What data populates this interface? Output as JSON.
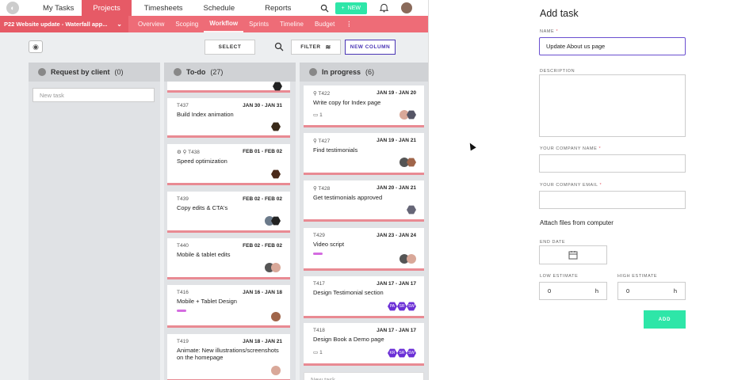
{
  "topnav": {
    "items": [
      "My Tasks",
      "Projects",
      "Timesheets",
      "Schedule",
      "Reports"
    ],
    "new_label": "NEW"
  },
  "projectbar": {
    "project_label": "P22  Website update - Waterfall app...",
    "tabs": [
      "Overview",
      "Scoping",
      "Workflow",
      "Sprints",
      "Timeline",
      "Budget"
    ],
    "more": "⋮"
  },
  "toolbar": {
    "select_label": "SELECT",
    "filter_label": "FILTER",
    "new_column_label": "NEW COLUMN"
  },
  "columns": [
    {
      "name": "Request by client",
      "count": "(0)",
      "new_task": "New task"
    },
    {
      "name": "To-do",
      "count": "(27)"
    },
    {
      "name": "In progress",
      "count": "(6)",
      "new_task": "New task"
    }
  ],
  "todo_cards": [
    {
      "id": "T437",
      "dates": "JAN 30 - JAN 31",
      "title": "Build Index animation"
    },
    {
      "id": "T438",
      "dates": "FEB 01 - FEB 02",
      "title": "Speed optimization"
    },
    {
      "id": "T439",
      "dates": "FEB 02 - FEB 02",
      "title": "Copy edits & CTA's"
    },
    {
      "id": "T440",
      "dates": "FEB 02 - FEB 02",
      "title": "Mobile & tablet edits"
    },
    {
      "id": "T416",
      "dates": "JAN 16 - JAN 18",
      "title": "Mobile + Tablet Design"
    },
    {
      "id": "T419",
      "dates": "JAN 18 - JAN 21",
      "title": "Animate: New illustrations/screenshots on the homepage"
    }
  ],
  "progress_cards": [
    {
      "id": "T422",
      "dates": "JAN 19 - JAN 20",
      "title": "Write copy for Index page",
      "comments": "1"
    },
    {
      "id": "T427",
      "dates": "JAN 19 - JAN 21",
      "title": "Find testimonials"
    },
    {
      "id": "T428",
      "dates": "JAN 20 - JAN 21",
      "title": "Get testimonials approved"
    },
    {
      "id": "T429",
      "dates": "JAN 23 - JAN 24",
      "title": "Video script"
    },
    {
      "id": "T417",
      "dates": "JAN 17 - JAN 17",
      "title": "Design Testimonial section",
      "avatars": [
        "PA",
        "SR",
        "SW"
      ]
    },
    {
      "id": "T418",
      "dates": "JAN 17 - JAN 17",
      "title": "Design Book a Demo page",
      "comments": "1",
      "avatars": [
        "KR",
        "SR",
        "SW"
      ]
    }
  ],
  "panel": {
    "title": "Add task",
    "name_label": "NAME",
    "name_value": "Update About us page",
    "description_label": "DESCRIPTION",
    "company_name_label": "YOUR COMPANY NAME",
    "company_email_label": "YOUR COMPANY EMAIL",
    "required_mark": "*",
    "attach_label": "Attach files from computer",
    "end_date_label": "END DATE",
    "low_estimate_label": "LOW ESTIMATE",
    "high_estimate_label": "HIGH ESTIMATE",
    "low_value": "0",
    "high_value": "0",
    "unit": "h",
    "add_label": "ADD"
  },
  "colors": {
    "accent": "#e65a66",
    "green": "#2ee6a8",
    "purple": "#4a35b5"
  }
}
